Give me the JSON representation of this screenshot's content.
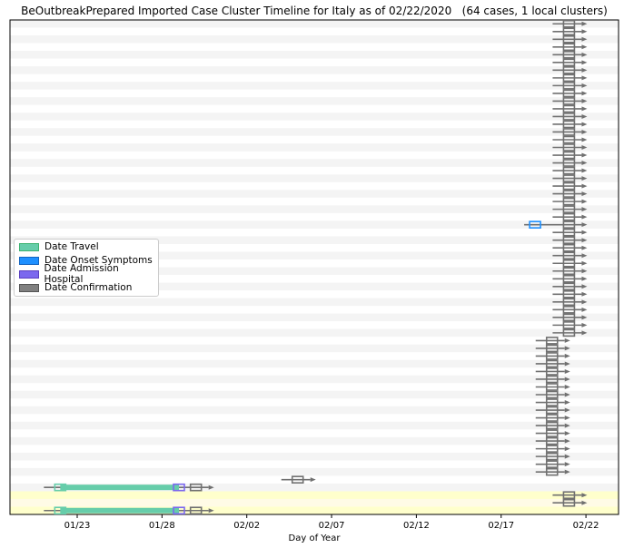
{
  "chart_data": {
    "type": "timeline",
    "title": "BeOutbreakPrepared Imported Case Cluster Timeline for Italy as of 02/22/2020   (64 cases, 1 local clusters)",
    "xlabel": "Day of Year",
    "x_ticks": [
      "01/23",
      "01/28",
      "02/02",
      "02/07",
      "02/12",
      "02/17",
      "02/22"
    ],
    "x_range": [
      "01/19",
      "02/23"
    ],
    "legend": [
      {
        "label": "Date Travel",
        "color": "#66cdaa",
        "edge": "#3cb371"
      },
      {
        "label": "Date Onset Symptoms",
        "color": "#1e90ff",
        "edge": "#1565c0"
      },
      {
        "label": "Date Admission Hospital",
        "color": "#7b68ee",
        "edge": "#5b3fc0"
      },
      {
        "label": "Date Confirmation",
        "color": "#808080",
        "edge": "#555555"
      }
    ],
    "legend_position": "center-left",
    "cluster_highlight_color": "#ffffcc",
    "rows": [
      {
        "row": 1,
        "travel": "01/22",
        "admission": "01/29",
        "confirmation": "01/30",
        "cluster": true
      },
      {
        "row": 2,
        "confirmation": "02/21",
        "cluster": true
      },
      {
        "row": 3,
        "confirmation": "02/21",
        "cluster": true
      },
      {
        "row": 4,
        "travel": "01/22",
        "admission": "01/29",
        "confirmation": "01/30",
        "cluster": false
      },
      {
        "row": 5,
        "confirmation": "02/05",
        "cluster": false
      },
      {
        "row": 6,
        "confirmation": "02/20",
        "count": 18
      },
      {
        "row": 24,
        "confirmation": "02/21",
        "count": 14
      },
      {
        "row": 38,
        "onset": "02/19",
        "confirmation": "02/21"
      },
      {
        "row": 39,
        "confirmation": "02/21",
        "count": 26
      }
    ]
  }
}
